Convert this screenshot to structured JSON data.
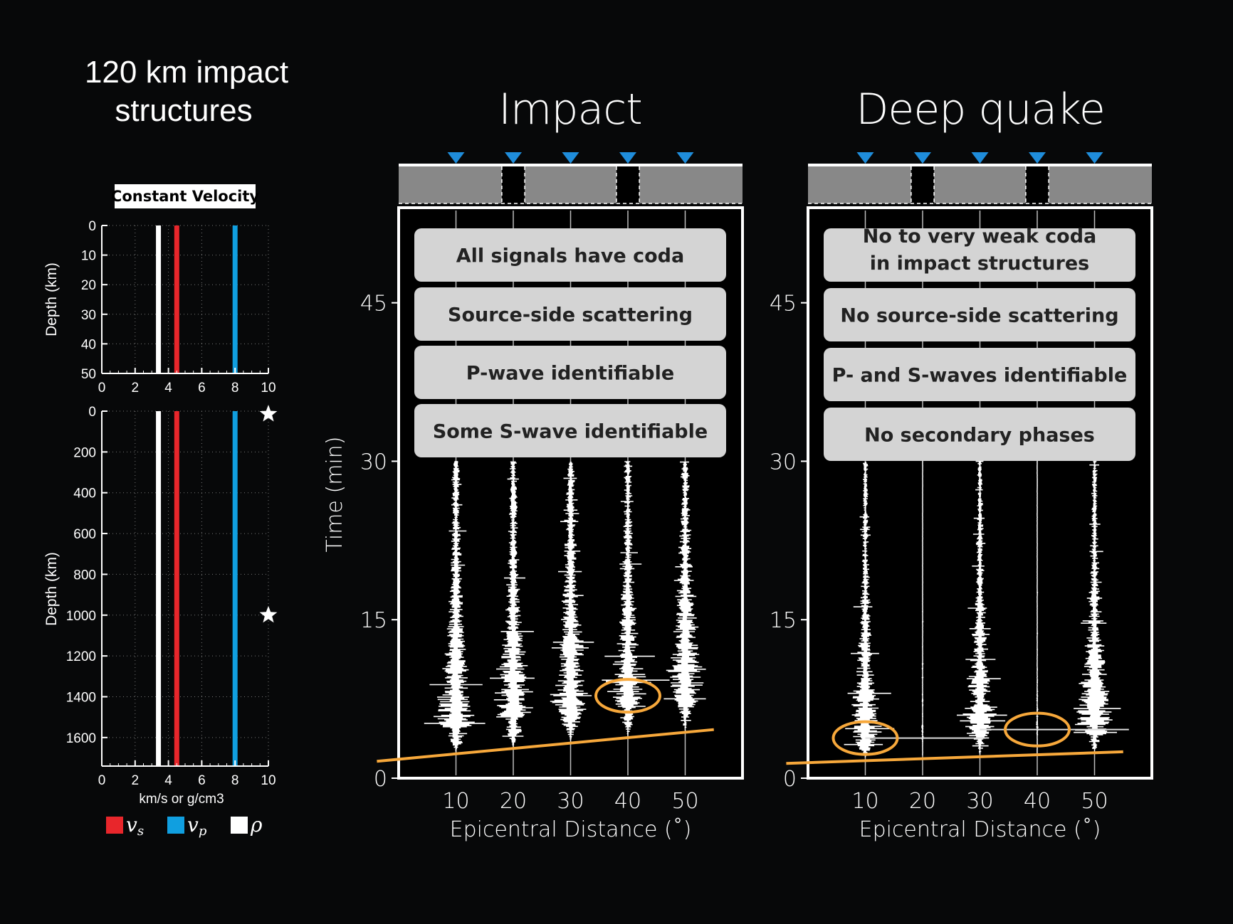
{
  "figure": {
    "main_title": [
      "120 km impact",
      "structures"
    ]
  },
  "model": {
    "box_label": "Constant Velocity",
    "ylabel": "Depth (km)",
    "xlabel": "km/s or g/cm3",
    "upper": {
      "yticks": [
        0,
        10,
        20,
        30,
        40,
        50
      ],
      "ylim": [
        0,
        50
      ]
    },
    "lower": {
      "yticks": [
        0,
        200,
        400,
        600,
        800,
        1000,
        1200,
        1400,
        1600
      ],
      "ylim": [
        0,
        1740
      ]
    },
    "xticks": [
      0,
      2,
      4,
      6,
      8,
      10
    ],
    "xlim": [
      0,
      10
    ],
    "profiles": [
      {
        "name": "v_s",
        "label": "v",
        "sub": "s",
        "value": 4.5,
        "color": "#e8262b"
      },
      {
        "name": "v_p",
        "label": "v",
        "sub": "p",
        "value": 8.0,
        "color": "#109fe0"
      },
      {
        "name": "rho",
        "label": "ρ",
        "sub": "",
        "value": 3.4,
        "color": "#ffffff"
      }
    ],
    "source_depths_km": [
      0,
      1000
    ]
  },
  "chart_data": [
    {
      "type": "line",
      "title": "Impact",
      "xlabel": "Epicentral Distance (˚)",
      "ylabel": "Time (min)",
      "x": [
        10,
        20,
        30,
        40,
        50
      ],
      "yticks": [
        0,
        15,
        30,
        45
      ],
      "ylim": [
        0,
        54
      ],
      "xlim": [
        0,
        60
      ],
      "boxes": [
        "All signals have coda",
        "Source-side scattering",
        "P-wave identifiable",
        "Some S-wave identifiable"
      ],
      "structure_gaps_deg": [
        [
          18,
          22
        ],
        [
          38,
          42
        ]
      ],
      "arrival_line": {
        "x": [
          -3.8,
          55
        ],
        "y": [
          1.6,
          4.6
        ]
      },
      "circles": [
        {
          "x": 40,
          "y": 7.8
        }
      ],
      "traces": [
        {
          "x": 10,
          "y_start": 2.5,
          "y_end": 30,
          "peak_y": 5.5,
          "amp": 6,
          "noise": 0.9
        },
        {
          "x": 20,
          "y_start": 3.0,
          "y_end": 30,
          "peak_y": 6.5,
          "amp": 5.5,
          "noise": 0.9
        },
        {
          "x": 30,
          "y_start": 3.5,
          "y_end": 30,
          "peak_y": 7.5,
          "amp": 5.5,
          "noise": 0.9
        },
        {
          "x": 40,
          "y_start": 4.0,
          "y_end": 30,
          "peak_y": 8.0,
          "amp": 5,
          "noise": 0.8
        },
        {
          "x": 50,
          "y_start": 4.5,
          "y_end": 30,
          "peak_y": 9.0,
          "amp": 5,
          "noise": 1.0
        }
      ]
    },
    {
      "type": "line",
      "title": "Deep quake",
      "xlabel": "Epicentral Distance (˚)",
      "ylabel": "",
      "x": [
        10,
        20,
        30,
        40,
        50
      ],
      "yticks": [
        0,
        15,
        30,
        45
      ],
      "ylim": [
        0,
        54
      ],
      "xlim": [
        0,
        60
      ],
      "boxes": [
        "No to very weak coda\nin impact structures",
        "No source-side scattering",
        "P- and S-waves identifiable",
        "No secondary phases"
      ],
      "structure_gaps_deg": [
        [
          18,
          22
        ],
        [
          38,
          42
        ]
      ],
      "arrival_line": {
        "x": [
          -3.8,
          55
        ],
        "y": [
          1.4,
          2.5
        ]
      },
      "circles": [
        {
          "x": 10,
          "y": 3.8
        },
        {
          "x": 40,
          "y": 4.6
        }
      ],
      "traces": [
        {
          "x": 10,
          "y_start": 2.0,
          "y_end": 30,
          "peak_y": 4.0,
          "amp": 5,
          "noise": 0.6
        },
        {
          "x": 20,
          "y_start": 2.2,
          "y_end": 30,
          "peak_y": 4.0,
          "amp": 0.3,
          "noise": 0.05
        },
        {
          "x": 30,
          "y_start": 2.3,
          "y_end": 30,
          "peak_y": 5.0,
          "amp": 5,
          "noise": 0.6
        },
        {
          "x": 40,
          "y_start": 2.4,
          "y_end": 30,
          "peak_y": 4.6,
          "amp": 0.3,
          "noise": 0.05
        },
        {
          "x": 50,
          "y_start": 2.5,
          "y_end": 30,
          "peak_y": 5.5,
          "amp": 5.5,
          "noise": 0.6
        }
      ]
    }
  ]
}
